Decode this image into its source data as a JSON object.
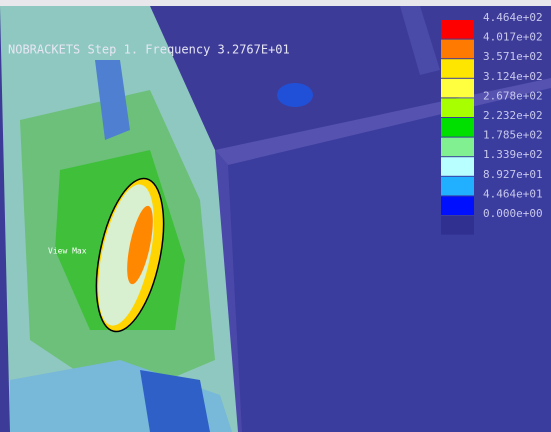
{
  "header": {
    "title": "NOBRACKETS Step 1. Frequency  3.2767E+01"
  },
  "annotation": {
    "label": "View Max"
  },
  "legend": {
    "entries": [
      {
        "label": "4.464e+02",
        "color": "#ff0000"
      },
      {
        "label": "4.017e+02",
        "color": "#ff7a00"
      },
      {
        "label": "3.571e+02",
        "color": "#ffe600"
      },
      {
        "label": "3.124e+02",
        "color": "#ffff40"
      },
      {
        "label": "2.678e+02",
        "color": "#a8ff00"
      },
      {
        "label": "2.232e+02",
        "color": "#00e000"
      },
      {
        "label": "1.785e+02",
        "color": "#80f090"
      },
      {
        "label": "1.339e+02",
        "color": "#b8ffff"
      },
      {
        "label": "8.927e+01",
        "color": "#20b0ff"
      },
      {
        "label": "4.464e+01",
        "color": "#0010ff"
      },
      {
        "label": "0.000e+00",
        "color": "#303090"
      }
    ]
  }
}
